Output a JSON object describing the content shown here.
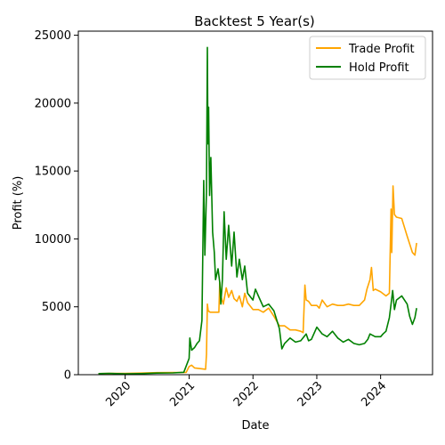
{
  "chart_data": {
    "type": "line",
    "title": "Backtest 5 Year(s)",
    "xlabel": "Date",
    "ylabel": "Profit (%)",
    "xlim": [
      "2019-04-08",
      "2024-10-24"
    ],
    "ylim": [
      0,
      25300
    ],
    "x_ticks": [
      "2020",
      "2021",
      "2022",
      "2023",
      "2024"
    ],
    "y_ticks": [
      "0",
      "5000",
      "10000",
      "15000",
      "20000",
      "25000"
    ],
    "legend_position": "top-right",
    "grid": false,
    "colors": {
      "trade": "#ffa500",
      "hold": "#008000"
    },
    "series": [
      {
        "name": "Trade Profit",
        "color": "#ffa500",
        "points": [
          [
            "2019-08-01",
            80
          ],
          [
            "2019-10-01",
            90
          ],
          [
            "2020-01-01",
            100
          ],
          [
            "2020-04-01",
            120
          ],
          [
            "2020-07-01",
            150
          ],
          [
            "2020-10-01",
            160
          ],
          [
            "2020-12-15",
            170
          ],
          [
            "2021-01-01",
            600
          ],
          [
            "2021-01-15",
            700
          ],
          [
            "2021-02-01",
            500
          ],
          [
            "2021-03-01",
            450
          ],
          [
            "2021-04-05",
            400
          ],
          [
            "2021-04-10",
            1500
          ],
          [
            "2021-04-15",
            5200
          ],
          [
            "2021-04-20",
            4700
          ],
          [
            "2021-05-01",
            4600
          ],
          [
            "2021-06-01",
            4600
          ],
          [
            "2021-06-20",
            4600
          ],
          [
            "2021-06-25",
            6800
          ],
          [
            "2021-07-01",
            5800
          ],
          [
            "2021-07-15",
            5200
          ],
          [
            "2021-08-01",
            6400
          ],
          [
            "2021-08-15",
            5700
          ],
          [
            "2021-09-01",
            6200
          ],
          [
            "2021-09-15",
            5600
          ],
          [
            "2021-10-01",
            5400
          ],
          [
            "2021-10-15",
            5800
          ],
          [
            "2021-11-01",
            5000
          ],
          [
            "2021-11-15",
            6000
          ],
          [
            "2021-12-01",
            5300
          ],
          [
            "2022-01-01",
            4800
          ],
          [
            "2022-02-01",
            4800
          ],
          [
            "2022-03-01",
            4600
          ],
          [
            "2022-04-01",
            4900
          ],
          [
            "2022-05-01",
            4300
          ],
          [
            "2022-06-01",
            3600
          ],
          [
            "2022-07-01",
            3600
          ],
          [
            "2022-08-01",
            3300
          ],
          [
            "2022-09-01",
            3300
          ],
          [
            "2022-10-01",
            3200
          ],
          [
            "2022-10-15",
            3100
          ],
          [
            "2022-10-25",
            6600
          ],
          [
            "2022-11-01",
            5500
          ],
          [
            "2022-11-15",
            5400
          ],
          [
            "2022-12-01",
            5100
          ],
          [
            "2023-01-01",
            5100
          ],
          [
            "2023-01-15",
            4900
          ],
          [
            "2023-02-01",
            5500
          ],
          [
            "2023-03-01",
            5000
          ],
          [
            "2023-04-01",
            5200
          ],
          [
            "2023-05-01",
            5100
          ],
          [
            "2023-06-01",
            5100
          ],
          [
            "2023-07-01",
            5200
          ],
          [
            "2023-08-01",
            5100
          ],
          [
            "2023-09-01",
            5100
          ],
          [
            "2023-10-01",
            5500
          ],
          [
            "2023-10-15",
            6300
          ],
          [
            "2023-11-01",
            7000
          ],
          [
            "2023-11-10",
            7900
          ],
          [
            "2023-11-20",
            6200
          ],
          [
            "2023-12-01",
            6300
          ],
          [
            "2024-01-01",
            6100
          ],
          [
            "2024-02-01",
            5800
          ],
          [
            "2024-02-20",
            6000
          ],
          [
            "2024-03-01",
            12200
          ],
          [
            "2024-03-05",
            9000
          ],
          [
            "2024-03-12",
            13900
          ],
          [
            "2024-03-20",
            11800
          ],
          [
            "2024-04-01",
            11600
          ],
          [
            "2024-05-01",
            11500
          ],
          [
            "2024-06-01",
            10200
          ],
          [
            "2024-07-01",
            9000
          ],
          [
            "2024-07-15",
            8800
          ],
          [
            "2024-07-25",
            9700
          ]
        ]
      },
      {
        "name": "Hold Profit",
        "color": "#008000",
        "points": [
          [
            "2019-08-01",
            80
          ],
          [
            "2019-10-01",
            100
          ],
          [
            "2020-01-01",
            60
          ],
          [
            "2020-04-01",
            80
          ],
          [
            "2020-07-01",
            120
          ],
          [
            "2020-10-01",
            130
          ],
          [
            "2020-12-01",
            180
          ],
          [
            "2021-01-01",
            1200
          ],
          [
            "2021-01-05",
            2700
          ],
          [
            "2021-01-15",
            1800
          ],
          [
            "2021-02-01",
            2000
          ],
          [
            "2021-02-15",
            2300
          ],
          [
            "2021-03-01",
            2500
          ],
          [
            "2021-03-15",
            4000
          ],
          [
            "2021-03-25",
            14300
          ],
          [
            "2021-04-01",
            8800
          ],
          [
            "2021-04-10",
            13500
          ],
          [
            "2021-04-15",
            24100
          ],
          [
            "2021-04-18",
            17000
          ],
          [
            "2021-04-22",
            19700
          ],
          [
            "2021-04-28",
            13200
          ],
          [
            "2021-05-05",
            16000
          ],
          [
            "2021-05-15",
            10500
          ],
          [
            "2021-05-25",
            9000
          ],
          [
            "2021-06-01",
            7000
          ],
          [
            "2021-06-15",
            7800
          ],
          [
            "2021-06-25",
            6800
          ],
          [
            "2021-07-01",
            5200
          ],
          [
            "2021-07-10",
            7000
          ],
          [
            "2021-07-20",
            12000
          ],
          [
            "2021-08-01",
            8500
          ],
          [
            "2021-08-15",
            11000
          ],
          [
            "2021-09-01",
            8000
          ],
          [
            "2021-09-15",
            10500
          ],
          [
            "2021-10-01",
            7200
          ],
          [
            "2021-10-15",
            8500
          ],
          [
            "2021-11-01",
            7000
          ],
          [
            "2021-11-15",
            8000
          ],
          [
            "2021-12-01",
            6000
          ],
          [
            "2022-01-01",
            5500
          ],
          [
            "2022-01-15",
            6300
          ],
          [
            "2022-02-01",
            5800
          ],
          [
            "2022-03-01",
            5000
          ],
          [
            "2022-04-01",
            5200
          ],
          [
            "2022-05-01",
            4700
          ],
          [
            "2022-06-01",
            3400
          ],
          [
            "2022-06-15",
            1900
          ],
          [
            "2022-07-01",
            2300
          ],
          [
            "2022-08-01",
            2700
          ],
          [
            "2022-09-01",
            2400
          ],
          [
            "2022-10-01",
            2500
          ],
          [
            "2022-11-01",
            3000
          ],
          [
            "2022-11-15",
            2500
          ],
          [
            "2022-12-01",
            2600
          ],
          [
            "2023-01-01",
            3500
          ],
          [
            "2023-02-01",
            3000
          ],
          [
            "2023-03-01",
            2800
          ],
          [
            "2023-04-01",
            3200
          ],
          [
            "2023-05-01",
            2700
          ],
          [
            "2023-06-01",
            2400
          ],
          [
            "2023-07-01",
            2600
          ],
          [
            "2023-08-01",
            2300
          ],
          [
            "2023-09-01",
            2200
          ],
          [
            "2023-10-01",
            2300
          ],
          [
            "2023-10-20",
            2600
          ],
          [
            "2023-11-01",
            3000
          ],
          [
            "2023-12-01",
            2800
          ],
          [
            "2024-01-01",
            2800
          ],
          [
            "2024-01-15",
            3000
          ],
          [
            "2024-02-01",
            3200
          ],
          [
            "2024-02-20",
            4200
          ],
          [
            "2024-03-01",
            5200
          ],
          [
            "2024-03-10",
            6200
          ],
          [
            "2024-03-20",
            4800
          ],
          [
            "2024-04-01",
            5500
          ],
          [
            "2024-05-01",
            5800
          ],
          [
            "2024-06-01",
            5200
          ],
          [
            "2024-06-15",
            4300
          ],
          [
            "2024-07-01",
            3700
          ],
          [
            "2024-07-15",
            4200
          ],
          [
            "2024-07-25",
            4900
          ]
        ]
      }
    ]
  }
}
